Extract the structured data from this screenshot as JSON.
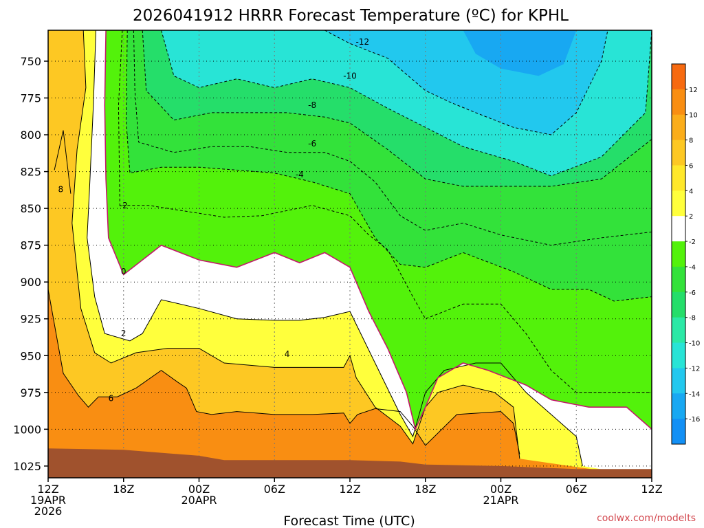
{
  "chart_data": {
    "type": "heatmap",
    "title": "2026041912 HRRR Forecast Temperature (ºC) for KPHL",
    "xlabel": "Forecast Time (UTC)",
    "ylabel": "",
    "credit": "coolwx.com/modelts",
    "x_unit": "forecast hour",
    "x_range": [
      0,
      48
    ],
    "y_unit": "hPa",
    "y_range": [
      1033,
      729
    ],
    "y_ticks": [
      750,
      775,
      800,
      825,
      850,
      875,
      900,
      925,
      950,
      975,
      1000,
      1025
    ],
    "x_ticks": [
      {
        "hour": 0,
        "lines": [
          "12Z",
          "19APR",
          "2026"
        ]
      },
      {
        "hour": 6,
        "lines": [
          "18Z"
        ]
      },
      {
        "hour": 12,
        "lines": [
          "00Z",
          "20APR"
        ]
      },
      {
        "hour": 18,
        "lines": [
          "06Z"
        ]
      },
      {
        "hour": 24,
        "lines": [
          "12Z"
        ]
      },
      {
        "hour": 30,
        "lines": [
          "18Z"
        ]
      },
      {
        "hour": 36,
        "lines": [
          "00Z",
          "21APR"
        ]
      },
      {
        "hour": 42,
        "lines": [
          "06Z"
        ]
      },
      {
        "hour": 48,
        "lines": [
          "12Z"
        ]
      }
    ],
    "grid": true,
    "colorbar": {
      "placement": "right",
      "labels": [
        "12",
        "10",
        "8",
        "6",
        "4",
        "2",
        "-2",
        "-4",
        "-6",
        "-8",
        "-10",
        "-12",
        "-14",
        "-16"
      ],
      "colors": [
        "#f76a10",
        "#f98e12",
        "#fbad1a",
        "#fdc823",
        "#ffe82a",
        "#ffff3c",
        "#ffffff",
        "#53f20b",
        "#33e23a",
        "#25de6a",
        "#2be9a6",
        "#28e4d6",
        "#22c8ee",
        "#18a8f2",
        "#1390f5"
      ]
    },
    "fill_levels": [
      {
        "value": 12,
        "color": "#f98e12"
      },
      {
        "value": 6,
        "color": "#fdc823"
      },
      {
        "value": 2,
        "color": "#ffff3c"
      },
      {
        "value": 0,
        "color": "#ffffff"
      },
      {
        "value": -2,
        "color": "#53f20b"
      },
      {
        "value": -4,
        "color": "#33e23a"
      },
      {
        "value": -8,
        "color": "#25de6a"
      },
      {
        "value": -12,
        "color": "#28e4d6"
      },
      {
        "value": -14,
        "color": "#22c8ee"
      },
      {
        "value": -16,
        "color": "#18a8f2"
      }
    ],
    "zero_line_color": "#c2186b",
    "terrain_color": "#a0522d",
    "isotherms": [
      {
        "value": 8,
        "points": [
          [
            0.5,
            824
          ],
          [
            1.2,
            797
          ],
          [
            1.8,
            840
          ]
        ],
        "label": "8",
        "label_at": [
          1.0,
          837
        ]
      },
      {
        "value": 6,
        "points": [
          [
            0,
            905
          ],
          [
            1.2,
            962
          ],
          [
            2.4,
            977
          ],
          [
            3.2,
            985
          ],
          [
            4.0,
            978
          ],
          [
            5.5,
            978
          ],
          [
            7.0,
            972
          ],
          [
            9.0,
            960
          ],
          [
            10.3,
            968
          ],
          [
            11.0,
            972
          ],
          [
            11.8,
            988
          ],
          [
            13.0,
            990
          ],
          [
            15.0,
            988
          ],
          [
            18.0,
            990
          ],
          [
            21.0,
            990
          ],
          [
            23.5,
            989
          ],
          [
            24.0,
            996
          ],
          [
            24.6,
            990
          ],
          [
            26.0,
            986
          ],
          [
            28.0,
            988
          ],
          [
            29.0,
            998
          ],
          [
            30.0,
            1011
          ],
          [
            32.5,
            990
          ],
          [
            36.0,
            988
          ],
          [
            37.0,
            996
          ],
          [
            37.5,
            1017
          ]
        ],
        "label": "6",
        "label_at": [
          5.0,
          979
        ]
      },
      {
        "value": 4,
        "points": [
          [
            2.8,
            729
          ],
          [
            3.0,
            768
          ],
          [
            2.3,
            810
          ],
          [
            1.9,
            860
          ],
          [
            2.6,
            918
          ],
          [
            3.7,
            948
          ],
          [
            5.0,
            955
          ],
          [
            7.0,
            948
          ],
          [
            9.5,
            945
          ],
          [
            12.0,
            945
          ],
          [
            14.0,
            955
          ],
          [
            18.0,
            958
          ],
          [
            21.0,
            958
          ],
          [
            23.5,
            958
          ],
          [
            24.0,
            950
          ],
          [
            24.5,
            965
          ],
          [
            26.0,
            985
          ],
          [
            28.0,
            998
          ],
          [
            29.0,
            1010
          ],
          [
            30.0,
            985
          ],
          [
            31.0,
            975
          ],
          [
            33.0,
            970
          ],
          [
            35.5,
            975
          ],
          [
            37.0,
            985
          ],
          [
            37.5,
            1020
          ]
        ],
        "label": "4",
        "label_at": [
          19.0,
          949
        ]
      },
      {
        "value": 2,
        "points": [
          [
            3.8,
            729
          ],
          [
            3.6,
            780
          ],
          [
            3.3,
            835
          ],
          [
            3.1,
            870
          ],
          [
            3.7,
            910
          ],
          [
            4.5,
            935
          ],
          [
            6.5,
            940
          ],
          [
            7.5,
            935
          ],
          [
            9.0,
            912
          ],
          [
            12.0,
            918
          ],
          [
            15.0,
            925
          ],
          [
            18.0,
            926
          ],
          [
            20.0,
            926
          ],
          [
            22.0,
            924
          ],
          [
            24.0,
            920
          ],
          [
            26.0,
            955
          ],
          [
            28.0,
            990
          ],
          [
            29.0,
            1005
          ],
          [
            30.0,
            975
          ],
          [
            31.5,
            960
          ],
          [
            34.0,
            955
          ],
          [
            36.0,
            955
          ],
          [
            38.0,
            975
          ],
          [
            40.0,
            990
          ],
          [
            42.0,
            1005
          ],
          [
            42.5,
            1025
          ]
        ],
        "label": "2",
        "label_at": [
          6.0,
          935
        ]
      },
      {
        "value": 0,
        "points": [
          [
            4.6,
            729
          ],
          [
            4.5,
            780
          ],
          [
            4.6,
            830
          ],
          [
            4.8,
            870
          ],
          [
            6.0,
            895
          ],
          [
            9.0,
            875
          ],
          [
            12.0,
            885
          ],
          [
            15.0,
            890
          ],
          [
            18.0,
            880
          ],
          [
            20.0,
            887
          ],
          [
            22.0,
            880
          ],
          [
            24.0,
            890
          ],
          [
            25.5,
            920
          ],
          [
            27.0,
            945
          ],
          [
            28.5,
            975
          ],
          [
            29.2,
            1000
          ],
          [
            30.0,
            985
          ],
          [
            31.0,
            965
          ],
          [
            33.0,
            955
          ],
          [
            35.0,
            960
          ],
          [
            38.0,
            970
          ],
          [
            40.0,
            980
          ],
          [
            43.0,
            985
          ],
          [
            46.0,
            985
          ],
          [
            48.0,
            1000
          ]
        ],
        "label": "0",
        "label_at": [
          6.0,
          893
        ]
      },
      {
        "value": -2,
        "points": [
          [
            5.9,
            729
          ],
          [
            5.6,
            780
          ],
          [
            5.7,
            848
          ],
          [
            8.0,
            848
          ],
          [
            11.0,
            852
          ],
          [
            14.0,
            856
          ],
          [
            17.0,
            855
          ],
          [
            21.0,
            848
          ],
          [
            24.0,
            855
          ],
          [
            25.5,
            868
          ],
          [
            27.0,
            878
          ],
          [
            29.0,
            910
          ],
          [
            30.0,
            925
          ],
          [
            33.0,
            915
          ],
          [
            36.0,
            915
          ],
          [
            38.0,
            935
          ],
          [
            40.0,
            960
          ],
          [
            42.0,
            975
          ],
          [
            45.0,
            975
          ],
          [
            48.0,
            975
          ]
        ],
        "label": "-2",
        "label_at": [
          6.0,
          848
        ]
      },
      {
        "value": -4,
        "points": [
          [
            6.3,
            729
          ],
          [
            6.2,
            790
          ],
          [
            6.5,
            826
          ],
          [
            9.0,
            822
          ],
          [
            12.0,
            822
          ],
          [
            15.0,
            824
          ],
          [
            18.0,
            826
          ],
          [
            21.0,
            832
          ],
          [
            24.0,
            840
          ],
          [
            26.0,
            870
          ],
          [
            28.0,
            888
          ],
          [
            30.0,
            890
          ],
          [
            33.0,
            880
          ],
          [
            37.0,
            893
          ],
          [
            40.0,
            905
          ],
          [
            43.0,
            905
          ],
          [
            45.0,
            913
          ],
          [
            48.0,
            910
          ]
        ],
        "label": "-4",
        "label_at": [
          20.0,
          827
        ]
      },
      {
        "value": -6,
        "points": [
          [
            6.8,
            729
          ],
          [
            6.9,
            770
          ],
          [
            7.2,
            805
          ],
          [
            10.0,
            812
          ],
          [
            13.0,
            808
          ],
          [
            16.0,
            808
          ],
          [
            19.0,
            812
          ],
          [
            22.0,
            812
          ],
          [
            24.0,
            818
          ],
          [
            26.0,
            832
          ],
          [
            28.0,
            855
          ],
          [
            30.0,
            865
          ],
          [
            33.0,
            860
          ],
          [
            36.0,
            868
          ],
          [
            40.0,
            875
          ],
          [
            44.0,
            870
          ],
          [
            48.0,
            866
          ]
        ],
        "label": "-6",
        "label_at": [
          21.0,
          806
        ]
      },
      {
        "value": -8,
        "points": [
          [
            7.5,
            729
          ],
          [
            7.8,
            770
          ],
          [
            10.0,
            790
          ],
          [
            13.0,
            785
          ],
          [
            16.0,
            785
          ],
          [
            19.0,
            785
          ],
          [
            22.0,
            788
          ],
          [
            24.0,
            792
          ],
          [
            27.0,
            810
          ],
          [
            30.0,
            830
          ],
          [
            33.0,
            835
          ],
          [
            36.0,
            835
          ],
          [
            40.0,
            835
          ],
          [
            44.0,
            830
          ],
          [
            48.0,
            803
          ]
        ],
        "label": "-8",
        "label_at": [
          21.0,
          780
        ]
      },
      {
        "value": -10,
        "points": [
          [
            9.0,
            729
          ],
          [
            10.0,
            760
          ],
          [
            12.0,
            768
          ],
          [
            15.0,
            762
          ],
          [
            18.0,
            768
          ],
          [
            21.0,
            762
          ],
          [
            24.0,
            768
          ],
          [
            27.0,
            782
          ],
          [
            30.0,
            795
          ],
          [
            33.0,
            808
          ],
          [
            37.0,
            818
          ],
          [
            40.0,
            828
          ],
          [
            44.0,
            815
          ],
          [
            47.5,
            785
          ],
          [
            48.0,
            729
          ]
        ],
        "label": "-10",
        "label_at": [
          24.0,
          760
        ]
      },
      {
        "value": -12,
        "points": [
          [
            22.0,
            729
          ],
          [
            24.0,
            738
          ],
          [
            27.0,
            748
          ],
          [
            30.0,
            770
          ],
          [
            32.0,
            778
          ],
          [
            34.0,
            785
          ],
          [
            37.0,
            795
          ],
          [
            40.0,
            800
          ],
          [
            42.0,
            785
          ],
          [
            44.0,
            750
          ],
          [
            44.5,
            729
          ]
        ],
        "label": "-12",
        "label_at": [
          25.0,
          737
        ]
      }
    ],
    "surface_pressure": [
      [
        0,
        1013
      ],
      [
        6,
        1014
      ],
      [
        12,
        1018
      ],
      [
        14,
        1021
      ],
      [
        18,
        1021
      ],
      [
        24,
        1021
      ],
      [
        28,
        1022
      ],
      [
        30,
        1024
      ],
      [
        36,
        1025
      ],
      [
        42,
        1027
      ],
      [
        48,
        1027
      ]
    ]
  }
}
